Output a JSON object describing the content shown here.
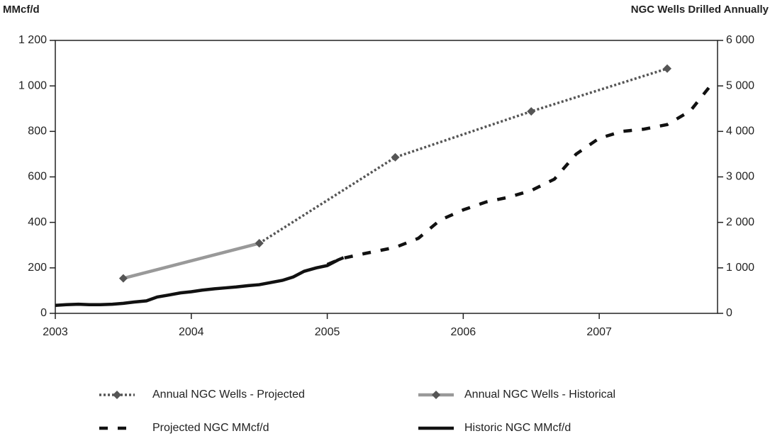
{
  "chart_data": {
    "type": "line",
    "y_label": "MMcf/d",
    "y2_label": "NGC Wells Drilled Annually",
    "xlim": [
      2003,
      2007.87
    ],
    "xticks": [
      2003,
      2004,
      2005,
      2006,
      2007
    ],
    "ylim": [
      0,
      1200
    ],
    "yticks": [
      0,
      200,
      400,
      600,
      800,
      {
        "value": 1000,
        "label": "1 000"
      },
      {
        "value": 1200,
        "label": "1 200"
      }
    ],
    "y2lim": [
      0,
      6000
    ],
    "y2ticks": [
      0,
      {
        "value": 1000,
        "label": "1 000"
      },
      {
        "value": 2000,
        "label": "2 000"
      },
      {
        "value": 3000,
        "label": "3 000"
      },
      {
        "value": 4000,
        "label": "4 000"
      },
      {
        "value": 5000,
        "label": "5 000"
      },
      {
        "value": 6000,
        "label": "6 000"
      }
    ],
    "series": [
      {
        "name": "Annual NGC Wells - Projected",
        "color": "#555555",
        "dash": "dot",
        "marker": "diamond",
        "axis": "y2",
        "x": [
          2004.5,
          2005.5,
          2006.5,
          2007.5
        ],
        "values": [
          1540,
          3430,
          4440,
          5380
        ]
      },
      {
        "name": "Annual NGC Wells - Historical",
        "color": "#999999",
        "dash": "solid",
        "marker": "diamond",
        "axis": "y2",
        "x": [
          2003.5,
          2004.5
        ],
        "values": [
          770,
          1540
        ]
      },
      {
        "name": "Projected NGC MMcf/d",
        "color": "#111111",
        "dash": "dash",
        "x": [
          2005.0,
          2005.1,
          2005.25,
          2005.5,
          2005.67,
          2005.83,
          2006.0,
          2006.17,
          2006.33,
          2006.5,
          2006.67,
          2006.83,
          2007.0,
          2007.17,
          2007.33,
          2007.5,
          2007.67,
          2007.83
        ],
        "values": [
          215,
          240,
          260,
          290,
          330,
          410,
          455,
          490,
          510,
          540,
          590,
          700,
          770,
          800,
          810,
          830,
          890,
          1010
        ]
      },
      {
        "name": "Historic NGC MMcf/d",
        "color": "#111111",
        "dash": "solid",
        "x": [
          2003.0,
          2003.08,
          2003.17,
          2003.25,
          2003.33,
          2003.42,
          2003.5,
          2003.58,
          2003.67,
          2003.75,
          2003.83,
          2003.92,
          2004.0,
          2004.08,
          2004.17,
          2004.25,
          2004.33,
          2004.42,
          2004.5,
          2004.58,
          2004.67,
          2004.75,
          2004.83,
          2004.92,
          2005.0,
          2005.08,
          2005.12
        ],
        "values": [
          35,
          38,
          40,
          38,
          38,
          40,
          44,
          50,
          55,
          72,
          80,
          90,
          95,
          102,
          108,
          112,
          116,
          122,
          126,
          135,
          145,
          160,
          185,
          200,
          210,
          235,
          245
        ]
      }
    ]
  }
}
